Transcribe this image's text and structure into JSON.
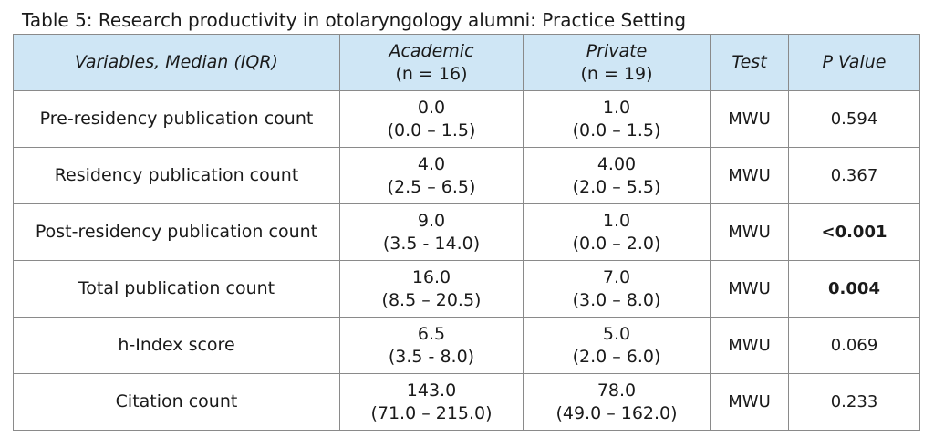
{
  "caption": "Table 5: Research productivity in otolaryngology alumni: Practice Setting",
  "header": {
    "variables": "Variables, Median (IQR)",
    "academic": "Academic",
    "academic_n": "(n = 16)",
    "private": "Private",
    "private_n": "(n = 19)",
    "test": "Test",
    "p_value": "P Value"
  },
  "rows": [
    {
      "variable": "Pre-residency publication count",
      "academic_median": "0.0",
      "academic_iqr": "(0.0 – 1.5)",
      "private_median": "1.0",
      "private_iqr": "(0.0 – 1.5)",
      "test": "MWU",
      "p": "0.594",
      "significant": false
    },
    {
      "variable": "Residency publication count",
      "academic_median": "4.0",
      "academic_iqr": "(2.5 – 6.5)",
      "private_median": "4.00",
      "private_iqr": "(2.0 – 5.5)",
      "test": "MWU",
      "p": "0.367",
      "significant": false
    },
    {
      "variable": "Post-residency publication count",
      "academic_median": "9.0",
      "academic_iqr": "(3.5 - 14.0)",
      "private_median": "1.0",
      "private_iqr": "(0.0 – 2.0)",
      "test": "MWU",
      "p": "<0.001",
      "significant": true
    },
    {
      "variable": "Total publication count",
      "academic_median": "16.0",
      "academic_iqr": "(8.5 – 20.5)",
      "private_median": "7.0",
      "private_iqr": "(3.0 – 8.0)",
      "test": "MWU",
      "p": "0.004",
      "significant": true
    },
    {
      "variable": "h-Index score",
      "academic_median": "6.5",
      "academic_iqr": "(3.5 - 8.0)",
      "private_median": "5.0",
      "private_iqr": "(2.0 – 6.0)",
      "test": "MWU",
      "p": "0.069",
      "significant": false
    },
    {
      "variable": "Citation count",
      "academic_median": "143.0",
      "academic_iqr": "(71.0 – 215.0)",
      "private_median": "78.0",
      "private_iqr": "(49.0 – 162.0)",
      "test": "MWU",
      "p": "0.233",
      "significant": false
    }
  ]
}
